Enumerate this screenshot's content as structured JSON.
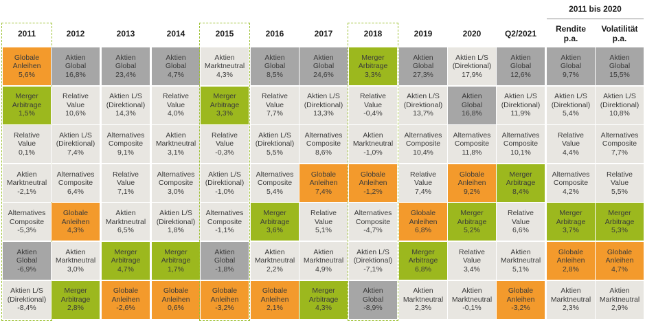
{
  "chart_data": {
    "type": "table",
    "title": "",
    "group_header": "2011 bis 2020",
    "highlighted_columns": [
      "2011",
      "2015",
      "2018"
    ],
    "category_colors": {
      "Globale Anleihen": "#f39a2c",
      "Merger Arbitrage": "#9cb81e",
      "Aktien Global": "#a6a6a6",
      "Aktien L/S (Direktional)": "#e8e6e1",
      "Relative Value": "#e8e6e1",
      "Alternatives Composite": "#e8e6e1",
      "Aktien Marktneutral": "#e8e6e1"
    },
    "columns": [
      {
        "header": "2011",
        "cells": [
          {
            "category": "Globale Anleihen",
            "lines": [
              "Globale",
              "Anleihen"
            ],
            "value": "5,6%"
          },
          {
            "category": "Merger Arbitrage",
            "lines": [
              "Merger",
              "Arbitrage"
            ],
            "value": "1,5%"
          },
          {
            "category": "Relative Value",
            "lines": [
              "Relative",
              "Value"
            ],
            "value": "0,1%"
          },
          {
            "category": "Aktien Marktneutral",
            "lines": [
              "Aktien",
              "Marktneutral"
            ],
            "value": "-2,1%"
          },
          {
            "category": "Alternatives Composite",
            "lines": [
              "Alternatives",
              "Composite"
            ],
            "value": "-5,3%"
          },
          {
            "category": "Aktien Global",
            "lines": [
              "Aktien",
              "Global"
            ],
            "value": "-6,9%"
          },
          {
            "category": "Aktien L/S (Direktional)",
            "lines": [
              "Aktien L/S",
              "(Direktional)"
            ],
            "value": "-8,4%"
          }
        ]
      },
      {
        "header": "2012",
        "cells": [
          {
            "category": "Aktien Global",
            "lines": [
              "Aktien",
              "Global"
            ],
            "value": "16,8%"
          },
          {
            "category": "Relative Value",
            "lines": [
              "Relative",
              "Value"
            ],
            "value": "10,6%"
          },
          {
            "category": "Aktien L/S (Direktional)",
            "lines": [
              "Aktien L/S",
              "(Direktional)"
            ],
            "value": "7,4%"
          },
          {
            "category": "Alternatives Composite",
            "lines": [
              "Alternatives",
              "Composite"
            ],
            "value": "6,4%"
          },
          {
            "category": "Globale Anleihen",
            "lines": [
              "Globale",
              "Anleihen"
            ],
            "value": "4,3%"
          },
          {
            "category": "Aktien Marktneutral",
            "lines": [
              "Aktien",
              "Marktneutral"
            ],
            "value": "3,0%"
          },
          {
            "category": "Merger Arbitrage",
            "lines": [
              "Merger",
              "Arbitrage"
            ],
            "value": "2,8%"
          }
        ]
      },
      {
        "header": "2013",
        "cells": [
          {
            "category": "Aktien Global",
            "lines": [
              "Aktien",
              "Global"
            ],
            "value": "23,4%"
          },
          {
            "category": "Aktien L/S (Direktional)",
            "lines": [
              "Aktien L/S",
              "(Direktional)"
            ],
            "value": "14,3%"
          },
          {
            "category": "Alternatives Composite",
            "lines": [
              "Alternatives",
              "Composite"
            ],
            "value": "9,1%"
          },
          {
            "category": "Relative Value",
            "lines": [
              "Relative",
              "Value"
            ],
            "value": "7,1%"
          },
          {
            "category": "Aktien Marktneutral",
            "lines": [
              "Aktien",
              "Marktneutral"
            ],
            "value": "6,5%"
          },
          {
            "category": "Merger Arbitrage",
            "lines": [
              "Merger",
              "Arbitrage"
            ],
            "value": "4,7%"
          },
          {
            "category": "Globale Anleihen",
            "lines": [
              "Globale",
              "Anleihen"
            ],
            "value": "-2,6%"
          }
        ]
      },
      {
        "header": "2014",
        "cells": [
          {
            "category": "Aktien Global",
            "lines": [
              "Aktien",
              "Global"
            ],
            "value": "4,7%"
          },
          {
            "category": "Relative Value",
            "lines": [
              "Relative",
              "Value"
            ],
            "value": "4,0%"
          },
          {
            "category": "Aktien Marktneutral",
            "lines": [
              "Aktien",
              "Marktneutral"
            ],
            "value": "3,1%"
          },
          {
            "category": "Alternatives Composite",
            "lines": [
              "Alternatives",
              "Composite"
            ],
            "value": "3,0%"
          },
          {
            "category": "Aktien L/S (Direktional)",
            "lines": [
              "Aktien L/S",
              "(Direktional)"
            ],
            "value": "1,8%"
          },
          {
            "category": "Merger Arbitrage",
            "lines": [
              "Merger",
              "Arbitrage"
            ],
            "value": "1,7%"
          },
          {
            "category": "Globale Anleihen",
            "lines": [
              "Globale",
              "Anleihen"
            ],
            "value": "0,6%"
          }
        ]
      },
      {
        "header": "2015",
        "cells": [
          {
            "category": "Aktien Marktneutral",
            "lines": [
              "Aktien",
              "Marktneutral"
            ],
            "value": "4,3%"
          },
          {
            "category": "Merger Arbitrage",
            "lines": [
              "Merger",
              "Arbitrage"
            ],
            "value": "3,3%"
          },
          {
            "category": "Relative Value",
            "lines": [
              "Relative",
              "Value"
            ],
            "value": "-0,3%"
          },
          {
            "category": "Aktien L/S (Direktional)",
            "lines": [
              "Aktien L/S",
              "(Direktional)"
            ],
            "value": "-1,0%"
          },
          {
            "category": "Alternatives Composite",
            "lines": [
              "Alternatives",
              "Composite"
            ],
            "value": "-1,1%"
          },
          {
            "category": "Aktien Global",
            "lines": [
              "Aktien",
              "Global"
            ],
            "value": "-1,8%"
          },
          {
            "category": "Globale Anleihen",
            "lines": [
              "Globale",
              "Anleihen"
            ],
            "value": "-3,2%"
          }
        ]
      },
      {
        "header": "2016",
        "cells": [
          {
            "category": "Aktien Global",
            "lines": [
              "Aktien",
              "Global"
            ],
            "value": "8,5%"
          },
          {
            "category": "Relative Value",
            "lines": [
              "Relative",
              "Value"
            ],
            "value": "7,7%"
          },
          {
            "category": "Aktien L/S (Direktional)",
            "lines": [
              "Aktien L/S",
              "(Direktional)"
            ],
            "value": "5,5%"
          },
          {
            "category": "Alternatives Composite",
            "lines": [
              "Alternatives",
              "Composite"
            ],
            "value": "5,4%"
          },
          {
            "category": "Merger Arbitrage",
            "lines": [
              "Merger",
              "Arbitrage"
            ],
            "value": "3,6%"
          },
          {
            "category": "Aktien Marktneutral",
            "lines": [
              "Aktien",
              "Marktneutral"
            ],
            "value": "2,2%"
          },
          {
            "category": "Globale Anleihen",
            "lines": [
              "Globale",
              "Anleihen"
            ],
            "value": "2,1%"
          }
        ]
      },
      {
        "header": "2017",
        "cells": [
          {
            "category": "Aktien Global",
            "lines": [
              "Aktien",
              "Global"
            ],
            "value": "24,6%"
          },
          {
            "category": "Aktien L/S (Direktional)",
            "lines": [
              "Aktien L/S",
              "(Direktional)"
            ],
            "value": "13,3%"
          },
          {
            "category": "Alternatives Composite",
            "lines": [
              "Alternatives",
              "Composite"
            ],
            "value": "8,6%"
          },
          {
            "category": "Globale Anleihen",
            "lines": [
              "Globale",
              "Anleihen"
            ],
            "value": "7,4%"
          },
          {
            "category": "Relative Value",
            "lines": [
              "Relative",
              "Value"
            ],
            "value": "5,1%"
          },
          {
            "category": "Aktien Marktneutral",
            "lines": [
              "Aktien",
              "Marktneutral"
            ],
            "value": "4,9%"
          },
          {
            "category": "Merger Arbitrage",
            "lines": [
              "Merger",
              "Arbitrage"
            ],
            "value": "4,3%"
          }
        ]
      },
      {
        "header": "2018",
        "cells": [
          {
            "category": "Merger Arbitrage",
            "lines": [
              "Merger",
              "Arbitrage"
            ],
            "value": "3,3%"
          },
          {
            "category": "Relative Value",
            "lines": [
              "Relative",
              "Value"
            ],
            "value": "-0,4%"
          },
          {
            "category": "Aktien Marktneutral",
            "lines": [
              "Aktien",
              "Marktneutral"
            ],
            "value": "-1,0%"
          },
          {
            "category": "Globale Anleihen",
            "lines": [
              "Globale",
              "Anleihen"
            ],
            "value": "-1,2%"
          },
          {
            "category": "Alternatives Composite",
            "lines": [
              "Alternatives",
              "Composite"
            ],
            "value": "-4,7%"
          },
          {
            "category": "Aktien L/S (Direktional)",
            "lines": [
              "Aktien L/S",
              "(Direktional)"
            ],
            "value": "-7,1%"
          },
          {
            "category": "Aktien Global",
            "lines": [
              "Aktien",
              "Global"
            ],
            "value": "-8,9%"
          }
        ]
      },
      {
        "header": "2019",
        "cells": [
          {
            "category": "Aktien Global",
            "lines": [
              "Aktien",
              "Global"
            ],
            "value": "27,3%"
          },
          {
            "category": "Aktien L/S (Direktional)",
            "lines": [
              "Aktien L/S",
              "(Direktional)"
            ],
            "value": "13,7%"
          },
          {
            "category": "Alternatives Composite",
            "lines": [
              "Alternatives",
              "Composite"
            ],
            "value": "10,4%"
          },
          {
            "category": "Relative Value",
            "lines": [
              "Relative",
              "Value"
            ],
            "value": "7,4%"
          },
          {
            "category": "Globale Anleihen",
            "lines": [
              "Globale",
              "Anleihen"
            ],
            "value": "6,8%"
          },
          {
            "category": "Merger Arbitrage",
            "lines": [
              "Merger",
              "Arbitrage"
            ],
            "value": "6,8%"
          },
          {
            "category": "Aktien Marktneutral",
            "lines": [
              "Aktien",
              "Marktneutral"
            ],
            "value": "2,3%"
          }
        ]
      },
      {
        "header": "2020",
        "cells": [
          {
            "category": "Aktien L/S (Direktional)",
            "lines": [
              "Aktien L/S",
              "(Direktional)"
            ],
            "value": "17,9%"
          },
          {
            "category": "Aktien Global",
            "lines": [
              "Aktien",
              "Global"
            ],
            "value": "16,8%"
          },
          {
            "category": "Alternatives Composite",
            "lines": [
              "Alternatives",
              "Composite"
            ],
            "value": "11,8%"
          },
          {
            "category": "Globale Anleihen",
            "lines": [
              "Globale",
              "Anleihen"
            ],
            "value": "9,2%"
          },
          {
            "category": "Merger Arbitrage",
            "lines": [
              "Merger",
              "Arbitrage"
            ],
            "value": "5,2%"
          },
          {
            "category": "Relative Value",
            "lines": [
              "Relative",
              "Value"
            ],
            "value": "3,4%"
          },
          {
            "category": "Aktien Marktneutral",
            "lines": [
              "Aktien",
              "Marktneutral"
            ],
            "value": "-0,1%"
          }
        ]
      },
      {
        "header": "Q2/2021",
        "cells": [
          {
            "category": "Aktien Global",
            "lines": [
              "Aktien",
              "Global"
            ],
            "value": "12,6%"
          },
          {
            "category": "Aktien L/S (Direktional)",
            "lines": [
              "Aktien L/S",
              "(Direktional)"
            ],
            "value": "11,9%"
          },
          {
            "category": "Alternatives Composite",
            "lines": [
              "Alternatives",
              "Composite"
            ],
            "value": "10,1%"
          },
          {
            "category": "Merger Arbitrage",
            "lines": [
              "Merger",
              "Arbitrage"
            ],
            "value": "8,4%"
          },
          {
            "category": "Relative Value",
            "lines": [
              "Relative",
              "Value"
            ],
            "value": "6,6%"
          },
          {
            "category": "Aktien Marktneutral",
            "lines": [
              "Aktien",
              "Marktneutral"
            ],
            "value": "5,1%"
          },
          {
            "category": "Globale Anleihen",
            "lines": [
              "Globale",
              "Anleihen"
            ],
            "value": "-3,2%"
          }
        ]
      },
      {
        "header": "Rendite p.a.",
        "header_lines": [
          "Rendite",
          "p.a."
        ],
        "group": "2011 bis 2020",
        "cells": [
          {
            "category": "Aktien Global",
            "lines": [
              "Aktien",
              "Global"
            ],
            "value": "9,7%"
          },
          {
            "category": "Aktien L/S (Direktional)",
            "lines": [
              "Aktien L/S",
              "(Direktional)"
            ],
            "value": "5,4%"
          },
          {
            "category": "Relative Value",
            "lines": [
              "Relative",
              "Value"
            ],
            "value": "4,4%"
          },
          {
            "category": "Alternatives Composite",
            "lines": [
              "Alternatives",
              "Composite"
            ],
            "value": "4,2%"
          },
          {
            "category": "Merger Arbitrage",
            "lines": [
              "Merger",
              "Arbitrage"
            ],
            "value": "3,7%"
          },
          {
            "category": "Globale Anleihen",
            "lines": [
              "Globale",
              "Anleihen"
            ],
            "value": "2,8%"
          },
          {
            "category": "Aktien Marktneutral",
            "lines": [
              "Aktien",
              "Marktneutral"
            ],
            "value": "2,3%"
          }
        ]
      },
      {
        "header": "Volatilität p.a.",
        "header_lines": [
          "Volatilität",
          "p.a."
        ],
        "group": "2011 bis 2020",
        "cells": [
          {
            "category": "Aktien Global",
            "lines": [
              "Aktien",
              "Global"
            ],
            "value": "15,5%"
          },
          {
            "category": "Aktien L/S (Direktional)",
            "lines": [
              "Aktien L/S",
              "(Direktional)"
            ],
            "value": "10,8%"
          },
          {
            "category": "Alternatives Composite",
            "lines": [
              "Alternatives",
              "Composite"
            ],
            "value": "7,7%"
          },
          {
            "category": "Relative Value",
            "lines": [
              "Relative",
              "Value"
            ],
            "value": "5,5%"
          },
          {
            "category": "Merger Arbitrage",
            "lines": [
              "Merger",
              "Arbitrage"
            ],
            "value": "5,3%"
          },
          {
            "category": "Globale Anleihen",
            "lines": [
              "Globale",
              "Anleihen"
            ],
            "value": "4,7%"
          },
          {
            "category": "Aktien Marktneutral",
            "lines": [
              "Aktien",
              "Marktneutral"
            ],
            "value": "2,9%"
          }
        ]
      }
    ]
  }
}
